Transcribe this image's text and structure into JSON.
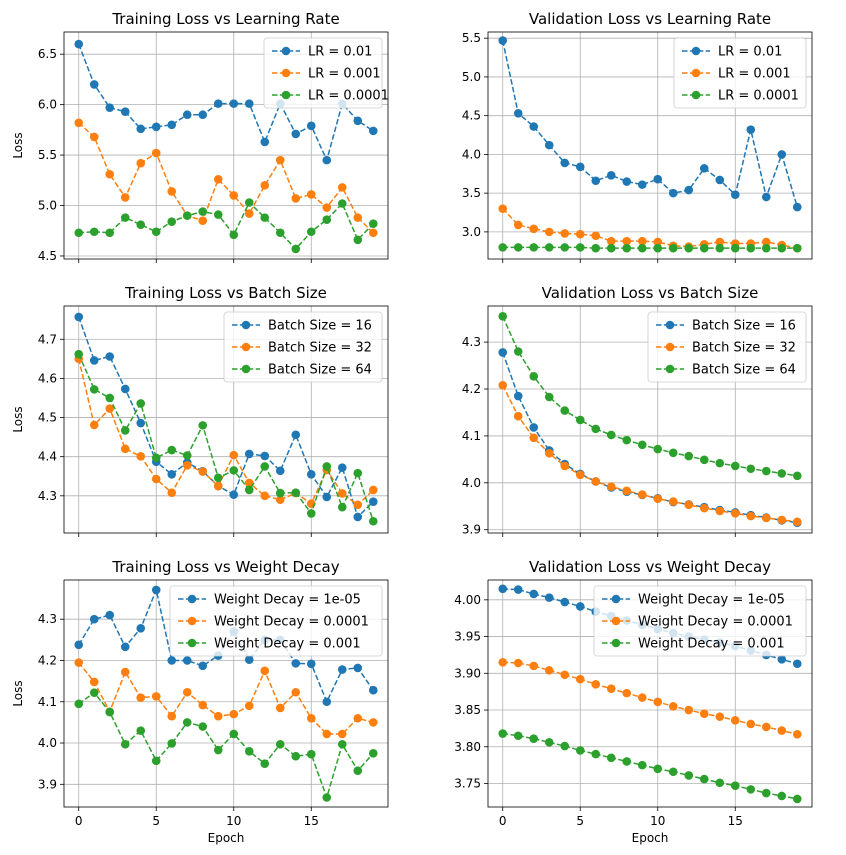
{
  "colors": {
    "blue": "#1f77b4",
    "orange": "#ff7f0e",
    "green": "#2ca02c",
    "grid": "#b0b0b0"
  },
  "chart_data": [
    {
      "type": "line",
      "title": "Training Loss vs Learning Rate",
      "xlabel": "",
      "ylabel": "Loss",
      "xlim": [
        -0.95,
        19.95
      ],
      "ylim": [
        4.47,
        6.72
      ],
      "xticks": [
        0,
        5,
        10,
        15
      ],
      "xtick_labels": [
        "",
        "",
        "",
        ""
      ],
      "yticks": [
        4.5,
        5.0,
        5.5,
        6.0,
        6.5
      ],
      "ytick_labels": [
        "4.5",
        "5.0",
        "5.5",
        "6.0",
        "6.5"
      ],
      "grid": true,
      "legend": "top-right",
      "x": [
        0,
        1,
        2,
        3,
        4,
        5,
        6,
        7,
        8,
        9,
        10,
        11,
        12,
        13,
        14,
        15,
        16,
        17,
        18,
        19
      ],
      "series": [
        {
          "name": "LR = 0.01",
          "color": "#1f77b4",
          "values": [
            6.6,
            6.2,
            5.97,
            5.93,
            5.76,
            5.78,
            5.8,
            5.9,
            5.9,
            6.01,
            6.01,
            6.01,
            5.63,
            6.01,
            5.71,
            5.79,
            5.45,
            6.01,
            5.84,
            5.74
          ]
        },
        {
          "name": "LR = 0.001",
          "color": "#ff7f0e",
          "values": [
            5.82,
            5.68,
            5.31,
            5.08,
            5.42,
            5.52,
            5.14,
            4.9,
            4.85,
            5.26,
            5.1,
            4.92,
            5.2,
            5.45,
            5.07,
            5.11,
            4.98,
            5.18,
            4.88,
            4.73
          ]
        },
        {
          "name": "LR = 0.0001",
          "color": "#2ca02c",
          "values": [
            4.73,
            4.74,
            4.73,
            4.88,
            4.81,
            4.74,
            4.84,
            4.9,
            4.94,
            4.91,
            4.71,
            5.03,
            4.88,
            4.73,
            4.57,
            4.74,
            4.86,
            5.02,
            4.66,
            4.82
          ]
        }
      ]
    },
    {
      "type": "line",
      "title": "Validation Loss vs Learning Rate",
      "xlabel": "",
      "ylabel": "",
      "xlim": [
        -0.95,
        19.95
      ],
      "ylim": [
        2.65,
        5.58
      ],
      "xticks": [
        0,
        5,
        10,
        15
      ],
      "xtick_labels": [
        "",
        "",
        "",
        ""
      ],
      "yticks": [
        3.0,
        3.5,
        4.0,
        4.5,
        5.0,
        5.5
      ],
      "ytick_labels": [
        "3.0",
        "3.5",
        "4.0",
        "4.5",
        "5.0",
        "5.5"
      ],
      "grid": true,
      "legend": "top-right",
      "x": [
        0,
        1,
        2,
        3,
        4,
        5,
        6,
        7,
        8,
        9,
        10,
        11,
        12,
        13,
        14,
        15,
        16,
        17,
        18,
        19
      ],
      "series": [
        {
          "name": "LR = 0.01",
          "color": "#1f77b4",
          "values": [
            5.47,
            4.53,
            4.36,
            4.12,
            3.89,
            3.84,
            3.66,
            3.73,
            3.65,
            3.61,
            3.68,
            3.5,
            3.54,
            3.82,
            3.67,
            3.48,
            4.32,
            3.45,
            4.0,
            3.32
          ]
        },
        {
          "name": "LR = 0.001",
          "color": "#ff7f0e",
          "values": [
            3.3,
            3.09,
            3.04,
            3.0,
            2.98,
            2.97,
            2.95,
            2.88,
            2.88,
            2.88,
            2.87,
            2.82,
            2.81,
            2.84,
            2.87,
            2.85,
            2.85,
            2.87,
            2.83,
            2.79
          ]
        },
        {
          "name": "LR = 0.0001",
          "color": "#2ca02c",
          "values": [
            2.8,
            2.8,
            2.8,
            2.8,
            2.8,
            2.8,
            2.79,
            2.79,
            2.79,
            2.79,
            2.79,
            2.79,
            2.79,
            2.79,
            2.79,
            2.79,
            2.79,
            2.79,
            2.79,
            2.79
          ]
        }
      ]
    },
    {
      "type": "line",
      "title": "Training Loss vs Batch Size",
      "xlabel": "",
      "ylabel": "Loss",
      "xlim": [
        -0.95,
        19.95
      ],
      "ylim": [
        4.205,
        4.785
      ],
      "xticks": [
        0,
        5,
        10,
        15
      ],
      "xtick_labels": [
        "",
        "",
        "",
        ""
      ],
      "yticks": [
        4.3,
        4.4,
        4.5,
        4.6,
        4.7
      ],
      "ytick_labels": [
        "4.3",
        "4.4",
        "4.5",
        "4.6",
        "4.7"
      ],
      "grid": true,
      "legend": "top-right",
      "x": [
        0,
        1,
        2,
        3,
        4,
        5,
        6,
        7,
        8,
        9,
        10,
        11,
        12,
        13,
        14,
        15,
        16,
        17,
        18,
        19
      ],
      "series": [
        {
          "name": "Batch Size = 16",
          "color": "#1f77b4",
          "values": [
            4.757,
            4.646,
            4.656,
            4.573,
            4.486,
            4.387,
            4.355,
            4.385,
            4.363,
            4.325,
            4.303,
            4.407,
            4.402,
            4.364,
            4.456,
            4.355,
            4.297,
            4.372,
            4.246,
            4.285
          ]
        },
        {
          "name": "Batch Size = 32",
          "color": "#ff7f0e",
          "values": [
            4.65,
            4.481,
            4.523,
            4.42,
            4.401,
            4.343,
            4.308,
            4.378,
            4.362,
            4.325,
            4.404,
            4.333,
            4.3,
            4.29,
            4.307,
            4.28,
            4.366,
            4.306,
            4.277,
            4.315
          ]
        },
        {
          "name": "Batch Size = 64",
          "color": "#2ca02c",
          "values": [
            4.662,
            4.572,
            4.55,
            4.467,
            4.536,
            4.397,
            4.417,
            4.403,
            4.48,
            4.346,
            4.365,
            4.315,
            4.375,
            4.307,
            4.308,
            4.255,
            4.375,
            4.271,
            4.358,
            4.235
          ]
        }
      ]
    },
    {
      "type": "line",
      "title": "Validation Loss vs Batch Size",
      "xlabel": "",
      "ylabel": "",
      "xlim": [
        -0.95,
        19.95
      ],
      "ylim": [
        3.893,
        4.377
      ],
      "xticks": [
        0,
        5,
        10,
        15
      ],
      "xtick_labels": [
        "",
        "",
        "",
        ""
      ],
      "yticks": [
        3.9,
        4.0,
        4.1,
        4.2,
        4.3
      ],
      "ytick_labels": [
        "3.9",
        "4.0",
        "4.1",
        "4.2",
        "4.3"
      ],
      "grid": true,
      "legend": "top-right",
      "x": [
        0,
        1,
        2,
        3,
        4,
        5,
        6,
        7,
        8,
        9,
        10,
        11,
        12,
        13,
        14,
        15,
        16,
        17,
        18,
        19
      ],
      "series": [
        {
          "name": "Batch Size = 16",
          "color": "#1f77b4",
          "values": [
            4.278,
            4.185,
            4.118,
            4.069,
            4.04,
            4.019,
            4.003,
            3.99,
            3.981,
            3.974,
            3.967,
            3.959,
            3.954,
            3.948,
            3.942,
            3.937,
            3.931,
            3.926,
            3.92,
            3.915
          ]
        },
        {
          "name": "Batch Size = 32",
          "color": "#ff7f0e",
          "values": [
            4.208,
            4.142,
            4.096,
            4.063,
            4.036,
            4.017,
            4.003,
            3.992,
            3.983,
            3.975,
            3.966,
            3.96,
            3.953,
            3.946,
            3.94,
            3.935,
            3.929,
            3.925,
            3.921,
            3.917
          ]
        },
        {
          "name": "Batch Size = 64",
          "color": "#2ca02c",
          "values": [
            4.355,
            4.28,
            4.227,
            4.183,
            4.154,
            4.134,
            4.115,
            4.102,
            4.091,
            4.081,
            4.072,
            4.064,
            4.057,
            4.049,
            4.042,
            4.036,
            4.03,
            4.025,
            4.02,
            4.015
          ]
        }
      ]
    },
    {
      "type": "line",
      "title": "Training Loss vs Weight Decay",
      "xlabel": "Epoch",
      "ylabel": "Loss",
      "xlim": [
        -0.95,
        19.95
      ],
      "ylim": [
        3.845,
        4.395
      ],
      "xticks": [
        0,
        5,
        10,
        15
      ],
      "xtick_labels": [
        "0",
        "5",
        "10",
        "15"
      ],
      "yticks": [
        3.9,
        4.0,
        4.1,
        4.2,
        4.3
      ],
      "ytick_labels": [
        "3.9",
        "4.0",
        "4.1",
        "4.2",
        "4.3"
      ],
      "grid": true,
      "legend": "top-right",
      "x": [
        0,
        1,
        2,
        3,
        4,
        5,
        6,
        7,
        8,
        9,
        10,
        11,
        12,
        13,
        14,
        15,
        16,
        17,
        18,
        19
      ],
      "series": [
        {
          "name": "Weight Decay = 1e-05",
          "color": "#1f77b4",
          "values": [
            4.238,
            4.3,
            4.31,
            4.233,
            4.278,
            4.371,
            4.2,
            4.2,
            4.187,
            4.212,
            4.27,
            4.202,
            4.25,
            4.25,
            4.193,
            4.192,
            4.1,
            4.178,
            4.182,
            4.128
          ]
        },
        {
          "name": "Weight Decay = 0.0001",
          "color": "#ff7f0e",
          "values": [
            4.195,
            4.148,
            4.076,
            4.172,
            4.11,
            4.113,
            4.065,
            4.123,
            4.092,
            4.065,
            4.07,
            4.09,
            4.175,
            4.085,
            4.123,
            4.06,
            4.022,
            4.022,
            4.06,
            4.05
          ]
        },
        {
          "name": "Weight Decay = 0.001",
          "color": "#2ca02c",
          "values": [
            4.095,
            4.122,
            4.075,
            3.997,
            4.03,
            3.957,
            3.999,
            4.05,
            4.04,
            3.983,
            4.022,
            3.98,
            3.95,
            3.997,
            3.968,
            3.973,
            3.868,
            3.997,
            3.933,
            3.975
          ]
        }
      ]
    },
    {
      "type": "line",
      "title": "Validation Loss vs Weight Decay",
      "xlabel": "Epoch",
      "ylabel": "",
      "xlim": [
        -0.95,
        19.95
      ],
      "ylim": [
        3.718,
        4.027
      ],
      "xticks": [
        0,
        5,
        10,
        15
      ],
      "xtick_labels": [
        "0",
        "5",
        "10",
        "15"
      ],
      "yticks": [
        3.75,
        3.8,
        3.85,
        3.9,
        3.95,
        4.0
      ],
      "ytick_labels": [
        "3.75",
        "3.80",
        "3.85",
        "3.90",
        "3.95",
        "4.00"
      ],
      "grid": true,
      "legend": "top-right",
      "x": [
        0,
        1,
        2,
        3,
        4,
        5,
        6,
        7,
        8,
        9,
        10,
        11,
        12,
        13,
        14,
        15,
        16,
        17,
        18,
        19
      ],
      "series": [
        {
          "name": "Weight Decay = 1e-05",
          "color": "#1f77b4",
          "values": [
            4.015,
            4.014,
            4.008,
            4.003,
            3.997,
            3.991,
            3.984,
            3.978,
            3.972,
            3.966,
            3.96,
            3.955,
            3.95,
            3.946,
            3.942,
            3.937,
            3.931,
            3.925,
            3.919,
            3.913
          ]
        },
        {
          "name": "Weight Decay = 0.0001",
          "color": "#ff7f0e",
          "values": [
            3.915,
            3.914,
            3.91,
            3.904,
            3.898,
            3.892,
            3.885,
            3.879,
            3.873,
            3.867,
            3.861,
            3.855,
            3.85,
            3.845,
            3.841,
            3.836,
            3.831,
            3.827,
            3.822,
            3.817
          ]
        },
        {
          "name": "Weight Decay = 0.001",
          "color": "#2ca02c",
          "values": [
            3.818,
            3.815,
            3.811,
            3.806,
            3.801,
            3.795,
            3.79,
            3.785,
            3.78,
            3.775,
            3.77,
            3.766,
            3.761,
            3.756,
            3.751,
            3.747,
            3.742,
            3.737,
            3.733,
            3.729
          ]
        }
      ]
    }
  ]
}
